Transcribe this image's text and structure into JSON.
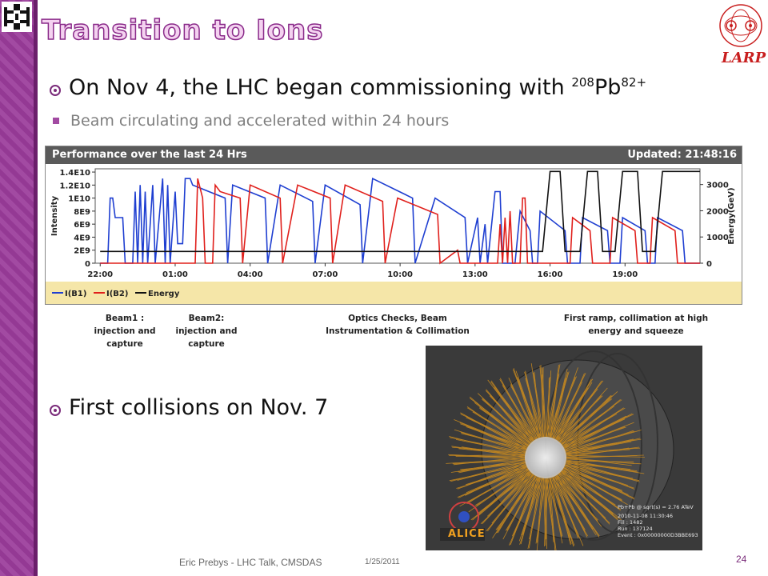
{
  "slide": {
    "title": "Transition to Ions",
    "logo_right": "LARP",
    "bullet1": {
      "prefix": "On Nov 4, the LHC began commissioning with ",
      "iso": "208",
      "elem": "Pb",
      "charge": "82+"
    },
    "sub_bullet": "Beam circulating and accelerated within 24 hours",
    "bullet2": "First collisions on Nov. 7",
    "footer": {
      "author": "Eric Prebys - LHC Talk, CMSDAS",
      "date": "1/25/2011",
      "page": "24"
    }
  },
  "chart_data": {
    "type": "line",
    "title": "Performance over the last 24 Hrs",
    "updated": "Updated: 21:48:16",
    "ylabel": "Intensity",
    "y2label": "Energy(GeV)",
    "yticks": [
      "1.4E10",
      "1.2E10",
      "1E10",
      "8E9",
      "6E9",
      "4E9",
      "2E9",
      "0"
    ],
    "y2ticks": [
      "3000",
      "2000",
      "1000",
      "0"
    ],
    "xticks": [
      "22:00",
      "01:00",
      "04:00",
      "07:00",
      "10:00",
      "13:00",
      "16:00",
      "19:00"
    ],
    "legend": [
      "I(B1)",
      "I(B2)",
      "Energy"
    ],
    "colors": {
      "b1": "#1f3fd1",
      "b2": "#e0201c",
      "energy": "#111111"
    },
    "series": [
      {
        "name": "I(B1)",
        "points": [
          [
            22.0,
            0
          ],
          [
            22.3,
            0
          ],
          [
            22.4,
            10000000000.0
          ],
          [
            22.5,
            10000000000.0
          ],
          [
            22.6,
            7000000000.0
          ],
          [
            22.9,
            7000000000.0
          ],
          [
            23.0,
            0
          ],
          [
            23.3,
            0
          ],
          [
            23.4,
            11000000000.0
          ],
          [
            23.5,
            0
          ],
          [
            23.6,
            12000000000.0
          ],
          [
            23.7,
            0
          ],
          [
            23.8,
            11000000000.0
          ],
          [
            23.9,
            0
          ],
          [
            24.1,
            12000000000.0
          ],
          [
            24.2,
            0
          ],
          [
            24.5,
            13000000000.0
          ],
          [
            24.6,
            0
          ],
          [
            24.7,
            12000000000.0
          ],
          [
            24.8,
            0
          ],
          [
            25.0,
            11000000000.0
          ],
          [
            25.1,
            3000000000.0
          ],
          [
            25.3,
            3000000000.0
          ],
          [
            25.4,
            13000000000.0
          ],
          [
            25.6,
            13000000000.0
          ],
          [
            25.7,
            12000000000.0
          ],
          [
            27.0,
            10000000000.0
          ],
          [
            27.1,
            0
          ],
          [
            27.3,
            12000000000.0
          ],
          [
            28.6,
            10000000000.0
          ],
          [
            28.7,
            0
          ],
          [
            29.2,
            12000000000.0
          ],
          [
            30.5,
            9500000000.0
          ],
          [
            30.6,
            0
          ],
          [
            31.0,
            12000000000.0
          ],
          [
            32.4,
            9000000000.0
          ],
          [
            32.5,
            0
          ],
          [
            32.9,
            13000000000.0
          ],
          [
            34.5,
            10000000000.0
          ],
          [
            34.6,
            0
          ],
          [
            35.4,
            10000000000.0
          ],
          [
            36.6,
            7000000000.0
          ],
          [
            36.7,
            0
          ],
          [
            37.1,
            7000000000.0
          ],
          [
            37.2,
            0
          ],
          [
            37.4,
            6000000000.0
          ],
          [
            37.5,
            0
          ],
          [
            37.8,
            11000000000.0
          ],
          [
            38.0,
            11000000000.0
          ],
          [
            38.1,
            0
          ],
          [
            38.6,
            0
          ],
          [
            38.8,
            8000000000.0
          ],
          [
            39.2,
            5000000000.0
          ],
          [
            39.3,
            0
          ],
          [
            39.5,
            0
          ],
          [
            39.6,
            8000000000.0
          ],
          [
            40.6,
            5000000000.0
          ],
          [
            40.7,
            0
          ],
          [
            41.2,
            0
          ],
          [
            41.3,
            7000000000.0
          ],
          [
            42.3,
            5000000000.0
          ],
          [
            42.4,
            0
          ],
          [
            42.8,
            0
          ],
          [
            42.9,
            7000000000.0
          ],
          [
            43.8,
            5000000000.0
          ],
          [
            43.9,
            0
          ],
          [
            44.2,
            0
          ],
          [
            44.3,
            7000000000.0
          ],
          [
            45.3,
            5000000000.0
          ],
          [
            45.4,
            0
          ],
          [
            46.0,
            0
          ]
        ]
      },
      {
        "name": "I(B2)",
        "points": [
          [
            22.0,
            0
          ],
          [
            25.8,
            0
          ],
          [
            25.9,
            13000000000.0
          ],
          [
            26.1,
            10000000000.0
          ],
          [
            26.2,
            0
          ],
          [
            26.5,
            0
          ],
          [
            26.6,
            12000000000.0
          ],
          [
            26.8,
            11000000000.0
          ],
          [
            27.6,
            10000000000.0
          ],
          [
            27.7,
            0
          ],
          [
            28.0,
            12000000000.0
          ],
          [
            29.2,
            10000000000.0
          ],
          [
            29.3,
            0
          ],
          [
            29.9,
            12000000000.0
          ],
          [
            31.2,
            10000000000.0
          ],
          [
            31.3,
            0
          ],
          [
            31.8,
            12000000000.0
          ],
          [
            33.3,
            9500000000.0
          ],
          [
            33.4,
            0
          ],
          [
            33.9,
            10000000000.0
          ],
          [
            35.5,
            7500000000.0
          ],
          [
            35.6,
            0
          ],
          [
            36.3,
            2000000000.0
          ],
          [
            36.4,
            0
          ],
          [
            37.9,
            0
          ],
          [
            38.0,
            6000000000.0
          ],
          [
            38.1,
            0
          ],
          [
            38.2,
            7000000000.0
          ],
          [
            38.3,
            0
          ],
          [
            38.4,
            8000000000.0
          ],
          [
            38.5,
            0
          ],
          [
            38.8,
            0
          ],
          [
            38.9,
            10000000000.0
          ],
          [
            39.0,
            10000000000.0
          ],
          [
            39.1,
            0
          ],
          [
            40.8,
            0
          ],
          [
            40.9,
            7000000000.0
          ],
          [
            41.6,
            5000000000.0
          ],
          [
            41.7,
            0
          ],
          [
            42.4,
            0
          ],
          [
            42.5,
            7000000000.0
          ],
          [
            43.4,
            5000000000.0
          ],
          [
            43.5,
            0
          ],
          [
            44.0,
            0
          ],
          [
            44.1,
            7000000000.0
          ],
          [
            45.0,
            5000000000.0
          ],
          [
            45.1,
            0
          ],
          [
            46.0,
            0
          ]
        ]
      },
      {
        "name": "Energy",
        "points": [
          [
            22.0,
            450
          ],
          [
            39.6,
            450
          ],
          [
            39.7,
            450
          ],
          [
            40.0,
            3500
          ],
          [
            40.4,
            3500
          ],
          [
            40.6,
            450
          ],
          [
            41.2,
            450
          ],
          [
            41.5,
            3500
          ],
          [
            41.9,
            3500
          ],
          [
            42.1,
            450
          ],
          [
            42.6,
            450
          ],
          [
            42.9,
            3500
          ],
          [
            43.5,
            3500
          ],
          [
            43.7,
            450
          ],
          [
            44.2,
            450
          ],
          [
            44.5,
            3500
          ],
          [
            46.0,
            3500
          ]
        ]
      }
    ],
    "xlim": [
      21.8,
      46.0
    ],
    "ylim": [
      0,
      14500000000.0
    ],
    "y2lim": [
      0,
      3600
    ],
    "grid": false,
    "legend_position": "bottom"
  },
  "annotations": [
    {
      "text": "Beam1 : injection and capture"
    },
    {
      "text": "Beam2: injection and capture"
    },
    {
      "text": "Optics Checks, Beam Instrumentation & Collimation"
    },
    {
      "text": "First ramp, collimation at high energy and squeeze"
    }
  ],
  "event_display": {
    "experiment": "ALICE",
    "info": [
      "Pb+Pb @ sqrt(s) = 2.76 ATeV",
      "2010-11-08 11:30:46",
      "Fill : 1482",
      "Run : 137124",
      "Event : 0x00000000D3BBE693"
    ]
  }
}
